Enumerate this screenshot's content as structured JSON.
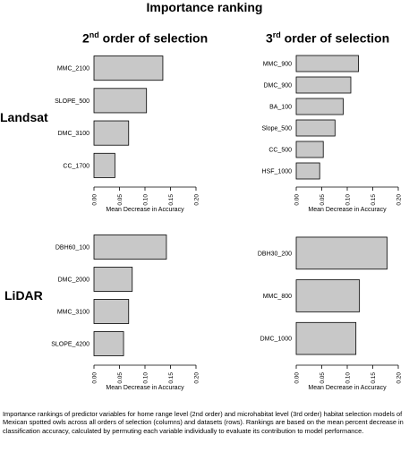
{
  "title": "Importance ranking",
  "columns": [
    {
      "num": "2",
      "sup": "nd",
      "rest": " order of selection"
    },
    {
      "num": "3",
      "sup": "rd",
      "rest": " order of selection"
    }
  ],
  "rows": [
    "Landsat",
    "LiDAR"
  ],
  "caption": "Importance rankings of predictor variables for home range level (2nd order) and microhabitat level (3rd order) habitat selection models of Mexican spotted owls across all orders of selection (columns) and datasets (rows). Rankings are based on the mean percent decrease in classification accuracy, calculated by permuting each variable individually to evaluate its contribution to model performance.",
  "chart_data": [
    {
      "type": "bar",
      "orientation": "horizontal",
      "panel": "Landsat - 2nd order of selection",
      "categories": [
        "MMC_2100",
        "SLOPE_500",
        "DMC_3100",
        "CC_1700"
      ],
      "values": [
        0.135,
        0.103,
        0.068,
        0.041
      ],
      "xlabel": "Mean Decrease in Accuracy",
      "xlim": [
        0,
        0.2
      ],
      "xticks": [
        "0.00",
        "0.05",
        "0.10",
        "0.15",
        "0.20"
      ]
    },
    {
      "type": "bar",
      "orientation": "horizontal",
      "panel": "Landsat - 3rd order of selection",
      "categories": [
        "MMC_900",
        "DMC_900",
        "BA_100",
        "Slope_500",
        "CC_500",
        "HSF_1000"
      ],
      "values": [
        0.122,
        0.107,
        0.092,
        0.076,
        0.053,
        0.046
      ],
      "xlabel": "Mean Decrease in Accuracy",
      "xlim": [
        0,
        0.2
      ],
      "xticks": [
        "0.00",
        "0.05",
        "0.10",
        "0.15",
        "0.20"
      ]
    },
    {
      "type": "bar",
      "orientation": "horizontal",
      "panel": "LiDAR - 2nd order of selection",
      "categories": [
        "DBH60_100",
        "DMC_2000",
        "MMC_3100",
        "SLOPE_4200"
      ],
      "values": [
        0.142,
        0.075,
        0.068,
        0.058
      ],
      "xlabel": "Mean Decrease in Accuracy",
      "xlim": [
        0,
        0.2
      ],
      "xticks": [
        "0.00",
        "0.05",
        "0.10",
        "0.15",
        "0.20"
      ]
    },
    {
      "type": "bar",
      "orientation": "horizontal",
      "panel": "LiDAR - 3rd order of selection",
      "categories": [
        "DBH30_200",
        "MMC_800",
        "DMC_1000"
      ],
      "values": [
        0.178,
        0.124,
        0.117
      ],
      "xlabel": "Mean Decrease in Accuracy",
      "xlim": [
        0,
        0.2
      ],
      "xticks": [
        "0.00",
        "0.05",
        "0.10",
        "0.15",
        "0.20"
      ]
    }
  ]
}
